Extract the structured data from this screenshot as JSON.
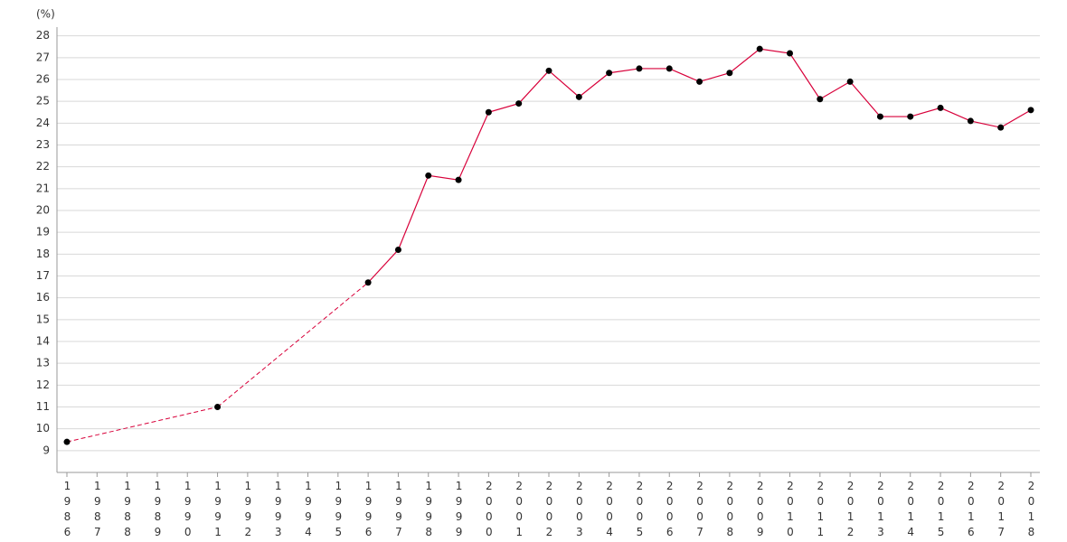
{
  "chart_data": {
    "type": "line",
    "y_unit": "(%)",
    "categories": [
      "1986",
      "1987",
      "1988",
      "1989",
      "1990",
      "1991",
      "1992",
      "1993",
      "1994",
      "1995",
      "1996",
      "1997",
      "1998",
      "1999",
      "2000",
      "2001",
      "2002",
      "2003",
      "2004",
      "2005",
      "2006",
      "2007",
      "2008",
      "2009",
      "2010",
      "2011",
      "2012",
      "2013",
      "2014",
      "2015",
      "2016",
      "2017",
      "2018"
    ],
    "values": [
      9.4,
      null,
      null,
      null,
      null,
      11.0,
      null,
      null,
      null,
      null,
      16.7,
      18.2,
      21.6,
      21.4,
      24.5,
      24.9,
      26.4,
      25.2,
      26.3,
      26.5,
      26.5,
      25.9,
      26.3,
      27.4,
      27.2,
      25.1,
      25.9,
      24.3,
      24.3,
      24.7,
      24.1,
      23.8,
      24.6
    ],
    "color": "#d8003a",
    "ylim": [
      8,
      28.4
    ],
    "yticks": [
      9,
      10,
      11,
      12,
      13,
      14,
      15,
      16,
      17,
      18,
      19,
      20,
      21,
      22,
      23,
      24,
      25,
      26,
      27,
      28
    ],
    "grid": true
  }
}
